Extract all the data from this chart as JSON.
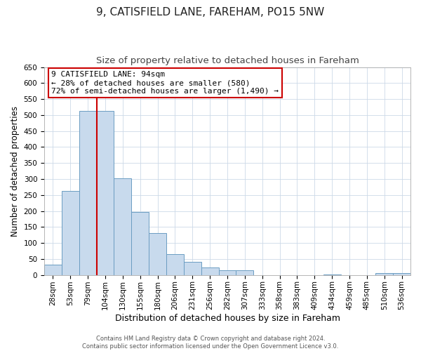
{
  "title": "9, CATISFIELD LANE, FAREHAM, PO15 5NW",
  "subtitle": "Size of property relative to detached houses in Fareham",
  "xlabel": "Distribution of detached houses by size in Fareham",
  "ylabel": "Number of detached properties",
  "bar_color": "#c8daed",
  "bar_edge_color": "#6b9dc2",
  "background_color": "#ffffff",
  "grid_color": "#ccd9e8",
  "categories": [
    "28sqm",
    "53sqm",
    "79sqm",
    "104sqm",
    "130sqm",
    "155sqm",
    "180sqm",
    "206sqm",
    "231sqm",
    "256sqm",
    "282sqm",
    "307sqm",
    "333sqm",
    "358sqm",
    "383sqm",
    "409sqm",
    "434sqm",
    "459sqm",
    "485sqm",
    "510sqm",
    "536sqm"
  ],
  "values": [
    32,
    263,
    513,
    513,
    302,
    196,
    131,
    65,
    40,
    23,
    15,
    15,
    0,
    0,
    0,
    0,
    2,
    0,
    0,
    5,
    5
  ],
  "ylim": [
    0,
    650
  ],
  "yticks": [
    0,
    50,
    100,
    150,
    200,
    250,
    300,
    350,
    400,
    450,
    500,
    550,
    600,
    650
  ],
  "property_line_x": 2.5,
  "annotation_title": "9 CATISFIELD LANE: 94sqm",
  "annotation_line1": "← 28% of detached houses are smaller (580)",
  "annotation_line2": "72% of semi-detached houses are larger (1,490) →",
  "footer_line1": "Contains HM Land Registry data © Crown copyright and database right 2024.",
  "footer_line2": "Contains public sector information licensed under the Open Government Licence v3.0.",
  "title_fontsize": 11,
  "subtitle_fontsize": 9.5,
  "xlabel_fontsize": 9,
  "ylabel_fontsize": 8.5,
  "tick_fontsize": 7.5,
  "annotation_fontsize": 8,
  "footer_fontsize": 6,
  "annotation_box_color": "#ffffff",
  "annotation_box_edge": "#cc0000",
  "property_line_color": "#cc0000"
}
